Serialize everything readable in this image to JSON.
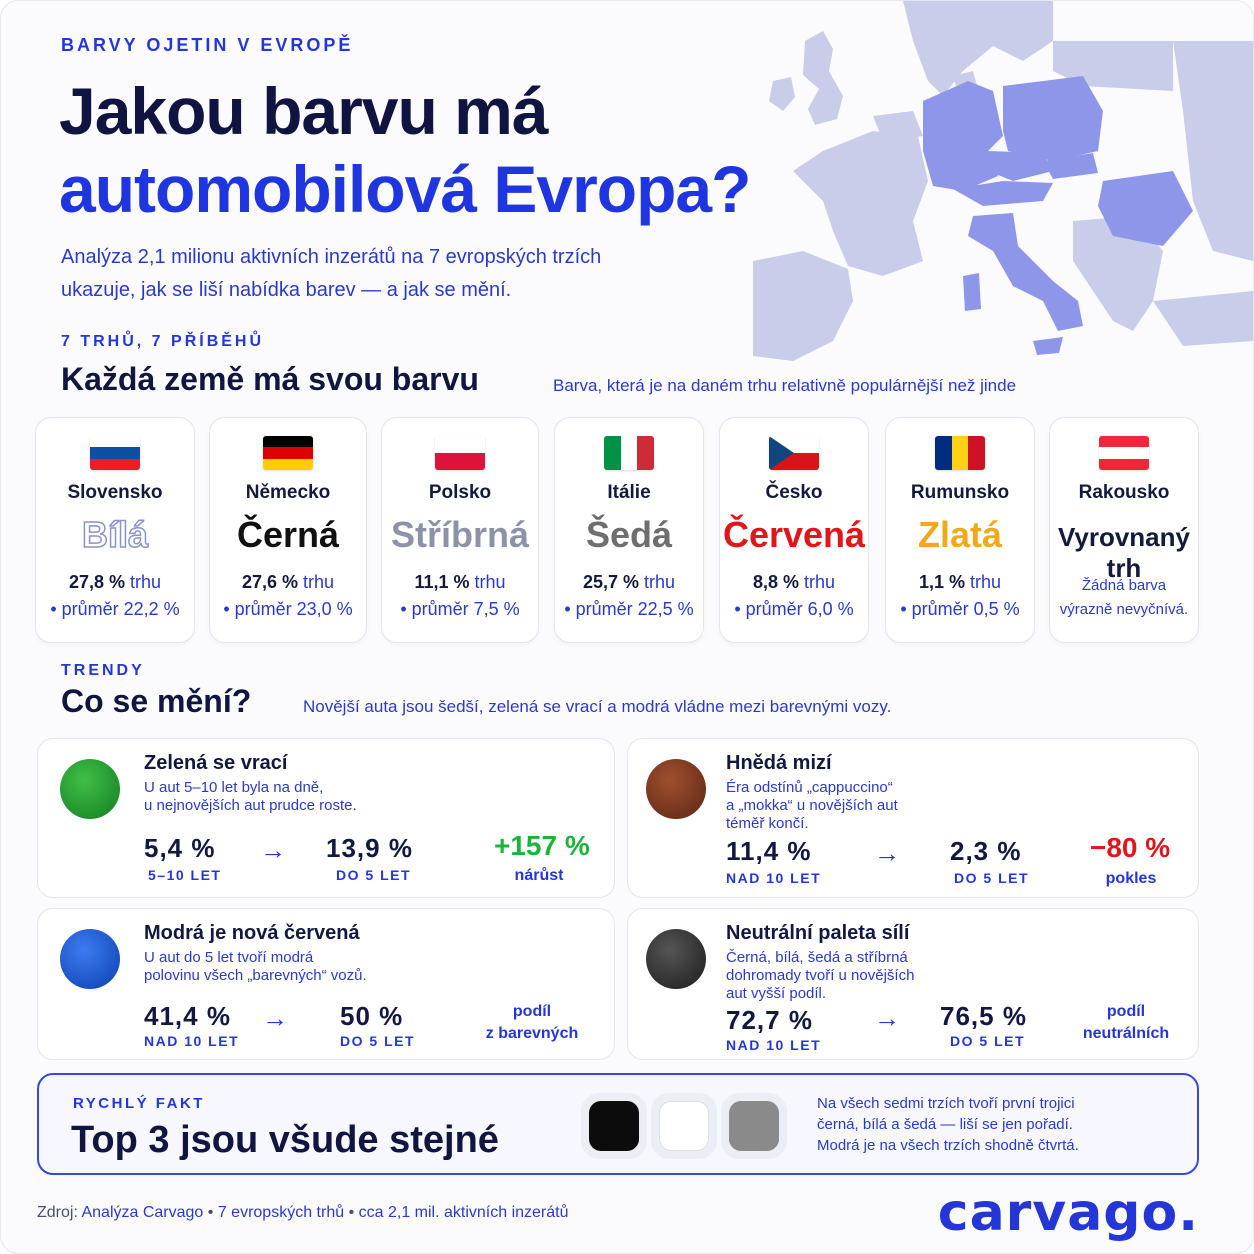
{
  "header": {
    "kicker": "BARVY OJETIN V EVROPĚ",
    "title_line1": "Jakou barvu má",
    "title_line2": "automobilová Evropa?",
    "lead_line1": "Analýza 2,1 milionu aktivních inzerátů na 7 evropských trzích",
    "lead_line2": "ukazuje, jak se liší nabídka barev — a jak se mění."
  },
  "markets_section": {
    "kicker": "7 TRHŮ, 7 PŘÍBĚHŮ",
    "heading": "Každá země má svou barvu",
    "note": "Barva, která je na daném trhu relativně populárnější než jinde"
  },
  "countries": [
    {
      "name": "Slovensko",
      "color_word": "Bílá",
      "share_value": "27,8 %",
      "share_suffix": "trhu",
      "average": "• průměr 22,2 %",
      "flag": "slovakia-flag",
      "word_color": "#ffffff"
    },
    {
      "name": "Německo",
      "color_word": "Černá",
      "share_value": "27,6 %",
      "share_suffix": "trhu",
      "average": "• průměr 23,0 %",
      "flag": "germany-flag",
      "word_color": "#111111"
    },
    {
      "name": "Polsko",
      "color_word": "Stříbrná",
      "share_value": "11,1 %",
      "share_suffix": "trhu",
      "average": "• průměr 7,5 %",
      "flag": "poland-flag",
      "word_color": "#8c93a8"
    },
    {
      "name": "Itálie",
      "color_word": "Šedá",
      "share_value": "25,7 %",
      "share_suffix": "trhu",
      "average": "• průměr 22,5 %",
      "flag": "italy-flag",
      "word_color": "#6e6e6e"
    },
    {
      "name": "Česko",
      "color_word": "Červená",
      "share_value": "8,8 %",
      "share_suffix": "trhu",
      "average": "• průměr 6,0 %",
      "flag": "czechia-flag",
      "word_color": "#e0161b"
    },
    {
      "name": "Rumunsko",
      "color_word": "Zlatá",
      "share_value": "1,1 %",
      "share_suffix": "trhu",
      "average": "• průměr 0,5 %",
      "flag": "romania-flag",
      "word_color": "#f2a81d"
    },
    {
      "name": "Rakousko",
      "color_word": "Vyrovnaný trh",
      "desc_line1": "Žádná barva",
      "desc_line2": "výrazně nevyčnívá.",
      "flag": "austria-flag"
    }
  ],
  "trends_section": {
    "kicker": "TRENDY",
    "heading": "Co se mění?",
    "note": "Novější auta jsou šedší, zelená se vrací a modrá vládne mezi barevnými vozy."
  },
  "trends": [
    {
      "title": "Zelená se vrací",
      "desc_lines": [
        "U aut 5–10 let byla na dně,",
        "u nejnovějších aut prudce roste."
      ],
      "from_value": "5,4 %",
      "from_label": "5–10 LET",
      "arrow": "→",
      "to_value": "13,9 %",
      "to_label": "DO 5 LET",
      "delta": "+157 %",
      "delta_label": "nárůst",
      "delta_color": "#1bb43a",
      "dot_color": "#1f9a2c"
    },
    {
      "title": "Hnědá mizí",
      "desc_lines": [
        "Éra odstínů „cappuccino“",
        "a „mokka“ u novějších aut",
        "téměř končí."
      ],
      "from_value": "11,4 %",
      "from_label": "NAD 10 LET",
      "arrow": "→",
      "to_value": "2,3 %",
      "to_label": "DO 5 LET",
      "delta": "−80 %",
      "delta_label": "pokles",
      "delta_color": "#e0161b",
      "dot_color": "#7a3a22"
    },
    {
      "title": "Modrá je nová červená",
      "desc_lines": [
        "U aut do 5 let tvoří modrá",
        "polovinu všech „barevných“ vozů."
      ],
      "from_value": "41,4 %",
      "from_label": "NAD 10 LET",
      "arrow": "→",
      "to_value": "50 %",
      "to_label": "DO 5 LET",
      "delta_label_line1": "podíl",
      "delta_label_line2": "z barevných",
      "dot_color": "#1456d6"
    },
    {
      "title": "Neutrální paleta sílí",
      "desc_lines": [
        "Černá, bílá, šedá a stříbrná",
        "dohromady tvoří u novějších",
        "aut vyšší podíl."
      ],
      "from_value": "72,7 %",
      "from_label": "NAD 10 LET",
      "arrow": "→",
      "to_value": "76,5 %",
      "to_label": "DO 5 LET",
      "delta_label_line1": "podíl",
      "delta_label_line2": "neutrálních",
      "dot_color": "#2d2d2d"
    }
  ],
  "quick_fact": {
    "kicker": "RYCHLÝ FAKT",
    "title": "Top 3 jsou všude stejné",
    "text_line1": "Na všech sedmi trzích tvoří první trojici",
    "text_line2": "černá, bílá a šedá — liší se jen pořadí.",
    "text_line3": "Modrá je na všech trzích shodně čtvrtá.",
    "swatches": [
      "#0c0c0c",
      "#ffffff",
      "#8a8a8a"
    ]
  },
  "footer": {
    "source_label": "Zdroj:",
    "source_items": [
      "Analýza Carvago",
      "7 evropských trhů",
      "cca 2,1 mil. aktivních inzerátů"
    ],
    "separator": "•",
    "logo": "carvago."
  },
  "colors": {
    "accent": "#2436d6",
    "navy": "#101640",
    "map_base": "#c9cdea",
    "map_highlight": "#8e96ea"
  }
}
